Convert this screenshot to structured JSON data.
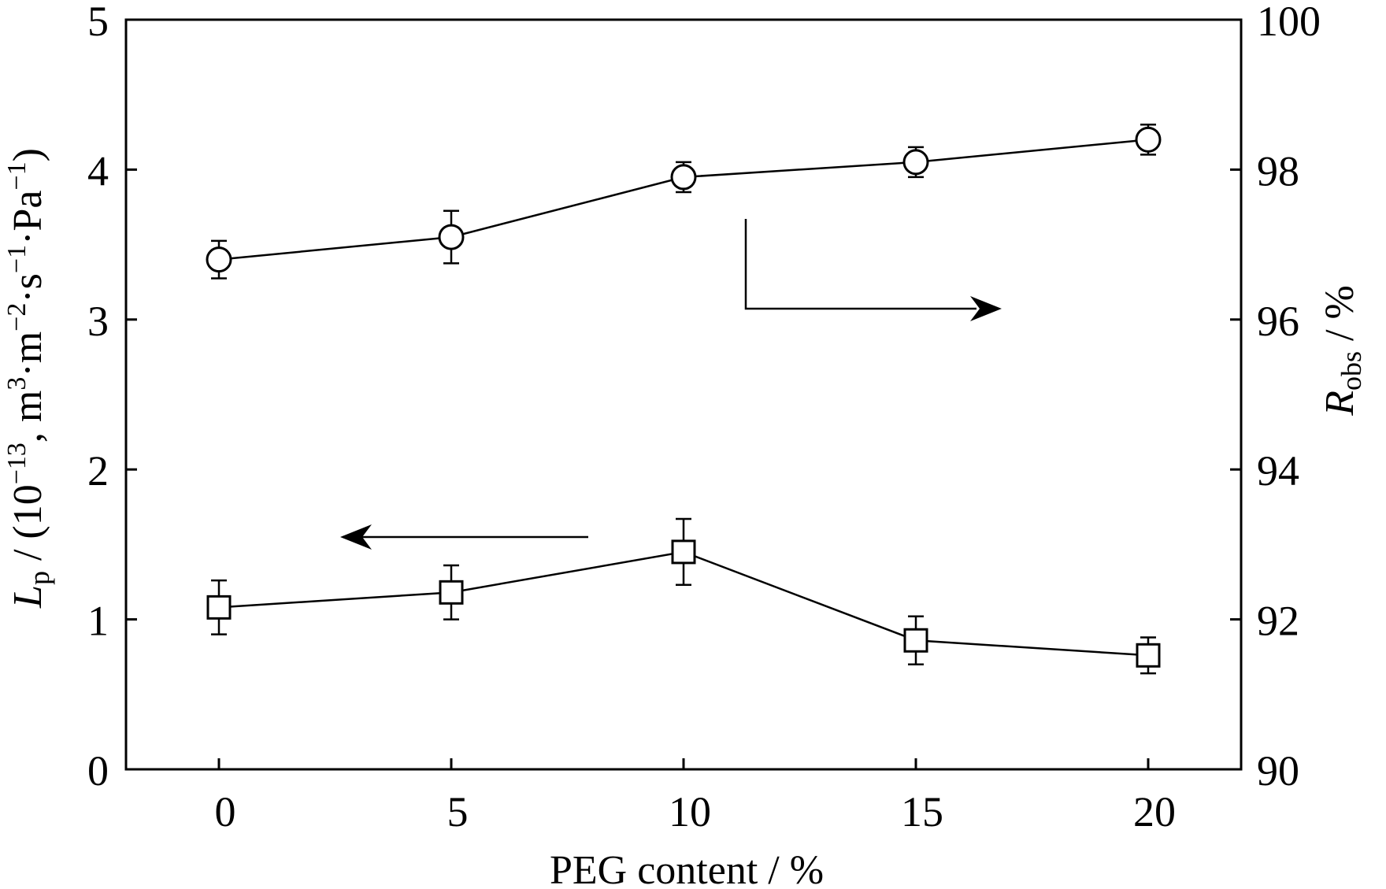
{
  "chart_data": {
    "type": "scatter",
    "x_label": "PEG content / %",
    "x_ticks": [
      0,
      5,
      10,
      15,
      20
    ],
    "xlim": [
      -2,
      22
    ],
    "y_left": {
      "label_main": "L",
      "label_sub": "p",
      "label_rest": " / (10",
      "label_sup1": "−13",
      "label_rest2": ", m",
      "label_sup2": "3",
      "label_rest3": "·m",
      "label_sup3": "−2",
      "label_rest4": "·s",
      "label_sup4": "−1",
      "label_rest5": "·Pa",
      "label_sup5": "−1",
      "label_end": ")",
      "ticks": [
        0,
        1,
        2,
        3,
        4,
        5
      ],
      "ylim": [
        0,
        5
      ]
    },
    "y_right": {
      "label_main": "R",
      "label_sub": "obs",
      "label_rest": " / %",
      "ticks": [
        90,
        92,
        94,
        96,
        98,
        100
      ],
      "ylim": [
        90,
        100
      ]
    },
    "series": [
      {
        "axis": "right",
        "marker": "circle",
        "x": [
          0,
          5,
          10,
          15,
          20
        ],
        "y": [
          96.8,
          97.1,
          97.9,
          98.1,
          98.4
        ],
        "err": [
          0.25,
          0.35,
          0.2,
          0.2,
          0.2
        ]
      },
      {
        "axis": "left",
        "marker": "square",
        "x": [
          0,
          5,
          10,
          15,
          20
        ],
        "y": [
          1.08,
          1.18,
          1.45,
          0.86,
          0.76
        ],
        "err": [
          0.18,
          0.18,
          0.22,
          0.16,
          0.12
        ]
      }
    ],
    "annotations": [
      {
        "type": "arrow",
        "points_to": "right-axis",
        "near_series": "circle"
      },
      {
        "type": "arrow",
        "points_to": "left-axis",
        "near_series": "square"
      }
    ]
  }
}
